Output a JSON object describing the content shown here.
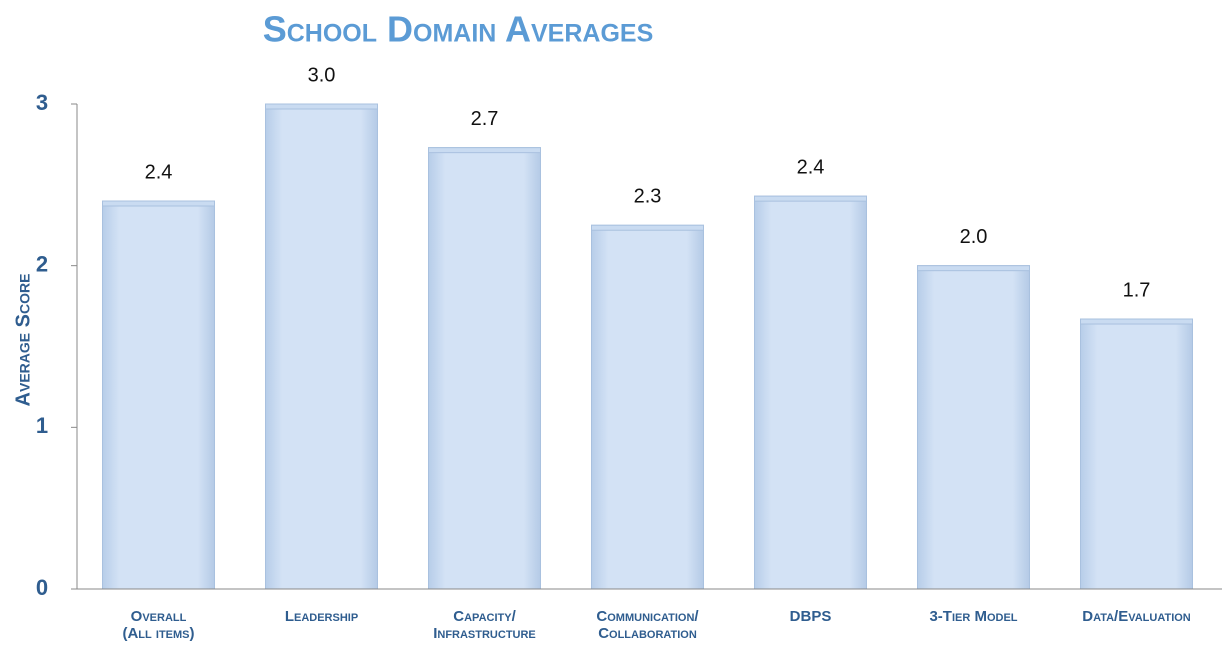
{
  "chart_data": {
    "type": "bar",
    "title": "School Domain Averages",
    "y_label": "Average Score",
    "categories": [
      "Overall\n(All items)",
      "Leadership",
      "Capacity/\nInfrastructure",
      "Communication/\nCollaboration",
      "DBPS",
      "3-Tier Model",
      "Data/Evaluation"
    ],
    "values": [
      2.4,
      3.0,
      2.73,
      2.25,
      2.43,
      2.0,
      1.67
    ],
    "value_labels": [
      "2.4",
      "3.0",
      "2.7",
      "2.3",
      "2.4",
      "2.0",
      "1.7"
    ],
    "color": "#c9dbf1",
    "ylim": [
      0,
      3
    ],
    "yticks": [
      0,
      1,
      2,
      3
    ],
    "grid": false
  }
}
